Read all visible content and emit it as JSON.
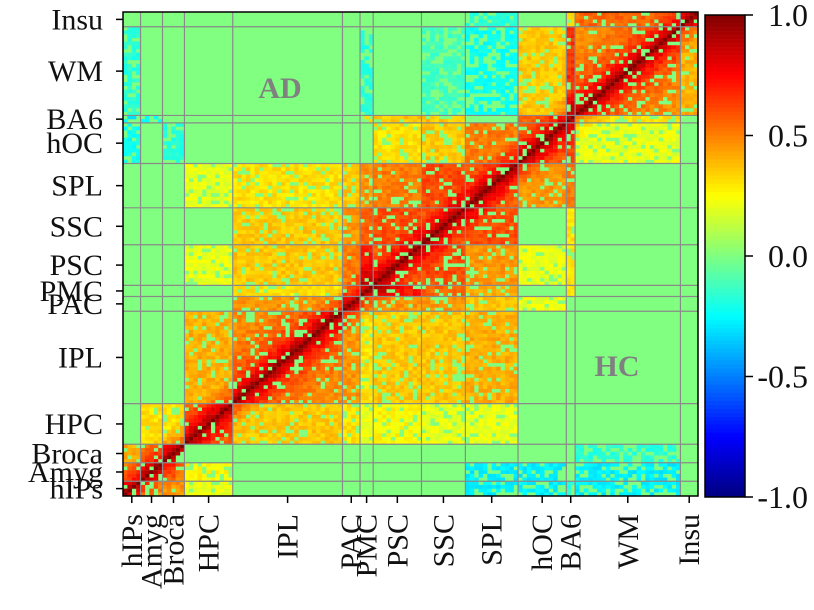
{
  "chart_data": {
    "type": "heatmap",
    "regions": [
      "hIPs",
      "Amyg",
      "Broca",
      "HPC",
      "IPL",
      "PAC",
      "PMC",
      "PSC",
      "SSC",
      "SPL",
      "hOC",
      "BA6",
      "WM",
      "Insu"
    ],
    "region_boundaries": [
      0,
      4,
      9,
      14,
      25,
      50,
      54,
      57,
      68,
      78,
      90,
      101,
      103,
      127,
      131
    ],
    "n_cells": 131,
    "upper_triangle_label": "HC",
    "lower_triangle_label": "AD",
    "colorbar": {
      "min": -1.0,
      "max": 1.0,
      "colormap": "jet",
      "tick_values": [
        1.0,
        0.5,
        0.0,
        -0.5,
        -1.0
      ],
      "tick_labels": [
        "1.0",
        "0.5",
        "0.0",
        "-0.5",
        "-1.0"
      ]
    },
    "grid": true,
    "lower_blocks": [
      {
        "rows": "WM",
        "cols": "hIPs",
        "value": -0.3
      },
      {
        "rows": "WM",
        "cols": "Amyg",
        "value": -0.3
      },
      {
        "rows": "WM",
        "cols": "Broca",
        "value": -0.2
      },
      {
        "rows": "BA6",
        "cols": "hIPs",
        "value": -0.2
      },
      {
        "rows": "hOC",
        "cols": "hIPs",
        "value": -0.3
      },
      {
        "rows": "hOC",
        "cols": "Amyg",
        "value": -0.3
      },
      {
        "rows": "SPL",
        "cols": "hIPs",
        "value": -0.3
      },
      {
        "rows": "SPL",
        "cols": "Amyg",
        "value": -0.3
      },
      {
        "rows": "SPL",
        "cols": "HPC",
        "value": 0.2
      },
      {
        "rows": "SPL",
        "cols": "IPL",
        "value": 0.4
      },
      {
        "rows": "SPL",
        "cols": "PAC",
        "value": 0.35
      },
      {
        "rows": "SSC",
        "cols": "IPL",
        "value": 0.35
      },
      {
        "rows": "SSC",
        "cols": "PAC",
        "value": 0.45
      },
      {
        "rows": "SSC",
        "cols": "PMC",
        "value": 0.55
      },
      {
        "rows": "SSC",
        "cols": "PSC",
        "value": 0.6
      },
      {
        "rows": "SSC",
        "cols": "HPC",
        "value": 0.2
      },
      {
        "rows": "SPL",
        "cols": "PMC",
        "value": 0.4
      },
      {
        "rows": "SPL",
        "cols": "PSC",
        "value": 0.45
      },
      {
        "rows": "SPL",
        "cols": "SSC",
        "value": 0.6
      },
      {
        "rows": "PSC",
        "cols": "IPL",
        "value": 0.35
      },
      {
        "rows": "PSC",
        "cols": "PAC",
        "value": 0.45
      },
      {
        "rows": "PSC",
        "cols": "PMC",
        "value": 0.7
      },
      {
        "rows": "PSC",
        "cols": "HPC",
        "value": 0.25
      },
      {
        "rows": "PMC",
        "cols": "IPL",
        "value": 0.3
      },
      {
        "rows": "PMC",
        "cols": "PAC",
        "value": 0.45
      },
      {
        "rows": "PMC",
        "cols": "HPC",
        "value": 0.2
      },
      {
        "rows": "PAC",
        "cols": "IPL",
        "value": 0.45
      },
      {
        "rows": "PAC",
        "cols": "HPC",
        "value": 0.3
      },
      {
        "rows": "IPL",
        "cols": "HPC",
        "value": 0.35
      },
      {
        "rows": "HPC",
        "cols": "hIPs",
        "value": 0.2
      },
      {
        "rows": "HPC",
        "cols": "Amyg",
        "value": 0.25
      },
      {
        "rows": "Broca",
        "cols": "hIPs",
        "value": 0.45
      },
      {
        "rows": "Broca",
        "cols": "Amyg",
        "value": 0.5
      },
      {
        "rows": "Amyg",
        "cols": "hIPs",
        "value": 0.45
      },
      {
        "rows": "hOC",
        "cols": "PAC",
        "value": 0.2
      },
      {
        "rows": "BA6",
        "cols": "PMC",
        "value": 0.3
      },
      {
        "rows": "BA6",
        "cols": "PSC",
        "value": 0.3
      },
      {
        "rows": "hOC",
        "cols": "SPL",
        "value": 0.45
      },
      {
        "rows": "hOC",
        "cols": "PSC",
        "value": 0.2
      },
      {
        "rows": "BA6",
        "cols": "SSC",
        "value": 0.3
      },
      {
        "rows": "BA6",
        "cols": "SPL",
        "value": 0.5
      },
      {
        "rows": "BA6",
        "cols": "hOC",
        "value": 0.6
      },
      {
        "rows": "WM",
        "cols": "hOC",
        "value": 0.2
      },
      {
        "rows": "WM",
        "cols": "BA6",
        "value": 0.3
      },
      {
        "rows": "Insu",
        "cols": "WM",
        "value": 0.4
      }
    ],
    "upper_blocks": [
      {
        "rows": "WM",
        "cols": "hOC",
        "value": 0.35
      },
      {
        "rows": "WM",
        "cols": "BA6",
        "value": 0.65
      },
      {
        "rows": "Insu",
        "cols": "WM",
        "value": 0.55
      },
      {
        "rows": "Insu",
        "cols": "BA6",
        "value": 0.35
      },
      {
        "rows": "BA6",
        "cols": "hOC",
        "value": 0.55
      },
      {
        "rows": "BA6",
        "cols": "PSC",
        "value": 0.35
      },
      {
        "rows": "BA6",
        "cols": "SSC",
        "value": 0.35
      },
      {
        "rows": "BA6",
        "cols": "PMC",
        "value": 0.3
      },
      {
        "rows": "hOC",
        "cols": "SPL",
        "value": 0.5
      },
      {
        "rows": "hOC",
        "cols": "SSC",
        "value": 0.35
      },
      {
        "rows": "hOC",
        "cols": "PSC",
        "value": 0.3
      },
      {
        "rows": "SPL",
        "cols": "SSC",
        "value": 0.6
      },
      {
        "rows": "SPL",
        "cols": "PSC",
        "value": 0.5
      },
      {
        "rows": "SPL",
        "cols": "PMC",
        "value": 0.45
      },
      {
        "rows": "SPL",
        "cols": "PAC",
        "value": 0.35
      },
      {
        "rows": "SPL",
        "cols": "IPL",
        "value": 0.3
      },
      {
        "rows": "SSC",
        "cols": "PSC",
        "value": 0.6
      },
      {
        "rows": "SSC",
        "cols": "PMC",
        "value": 0.55
      },
      {
        "rows": "SSC",
        "cols": "PAC",
        "value": 0.45
      },
      {
        "rows": "SSC",
        "cols": "IPL",
        "value": 0.35
      },
      {
        "rows": "PSC",
        "cols": "PMC",
        "value": 0.7
      },
      {
        "rows": "PSC",
        "cols": "PAC",
        "value": 0.5
      },
      {
        "rows": "PSC",
        "cols": "IPL",
        "value": 0.35
      },
      {
        "rows": "PMC",
        "cols": "PAC",
        "value": 0.5
      },
      {
        "rows": "PMC",
        "cols": "IPL",
        "value": 0.3
      },
      {
        "rows": "PAC",
        "cols": "IPL",
        "value": 0.45
      },
      {
        "rows": "IPL",
        "cols": "HPC",
        "value": 0.4
      },
      {
        "rows": "HPC",
        "cols": "Broca",
        "value": 0.3
      },
      {
        "rows": "HPC",
        "cols": "Amyg",
        "value": 0.3
      },
      {
        "rows": "Broca",
        "cols": "Amyg",
        "value": 0.5
      },
      {
        "rows": "Amyg",
        "cols": "hIPs",
        "value": 0.5
      },
      {
        "rows": "Broca",
        "cols": "hIPs",
        "value": 0.4
      },
      {
        "rows": "SPL",
        "cols": "HPC",
        "value": 0.2
      },
      {
        "rows": "PSC",
        "cols": "HPC",
        "value": 0.2
      },
      {
        "rows": "hOC",
        "cols": "Broca",
        "value": -0.2
      },
      {
        "rows": "hOC",
        "cols": "hIPs",
        "value": -0.25
      },
      {
        "rows": "WM",
        "cols": "hIPs",
        "value": -0.2
      },
      {
        "rows": "WM",
        "cols": "PMC",
        "value": -0.2
      },
      {
        "rows": "WM",
        "cols": "SPL",
        "value": -0.25
      },
      {
        "rows": "WM",
        "cols": "SSC",
        "value": -0.15
      },
      {
        "rows": "Insu",
        "cols": "SPL",
        "value": -0.2
      },
      {
        "rows": "BA6",
        "cols": "hIPs",
        "value": -0.3
      },
      {
        "rows": "BA6",
        "cols": "Amyg",
        "value": -0.25
      }
    ],
    "diagonal_value": 1.0
  }
}
